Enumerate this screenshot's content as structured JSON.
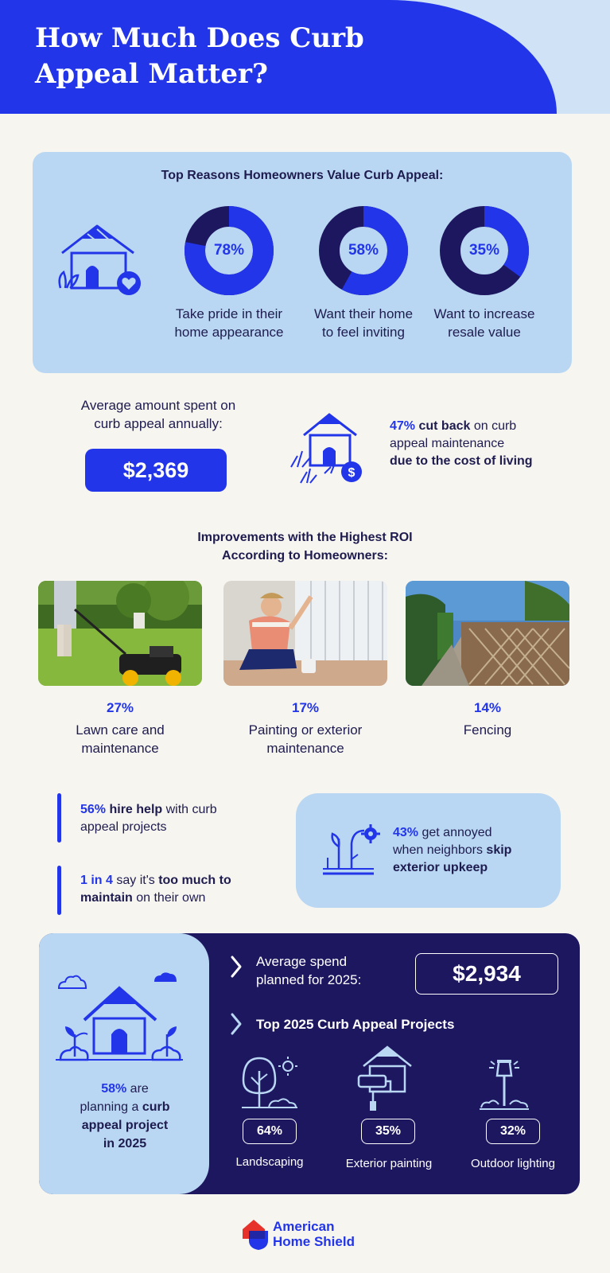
{
  "header": {
    "title_line1": "How Much Does Curb",
    "title_line2": "Appeal Matter?",
    "bg_color": "#2235e8"
  },
  "reasons": {
    "heading": "Top Reasons Homeowners Value Curb Appeal:",
    "icon": "house-heart-icon",
    "items": [
      {
        "percent": "78%",
        "value": 0.78,
        "label_line1": "Take pride in their",
        "label_line2": "home appearance"
      },
      {
        "percent": "58%",
        "value": 0.58,
        "label_line1": "Want their home",
        "label_line2": "to feel inviting"
      },
      {
        "percent": "35%",
        "value": 0.35,
        "label_line1": "Want to increase",
        "label_line2": "resale value"
      }
    ]
  },
  "average_spend": {
    "label_line1": "Average amount spent on",
    "label_line2": "curb appeal annually:",
    "amount": "$2,369"
  },
  "cut_back": {
    "icon": "house-dollar-icon",
    "percent": "47%",
    "text1": " cut back",
    "text2": " on curb",
    "line2": "appeal maintenance",
    "line3": "due to the cost of living"
  },
  "roi": {
    "heading_line1": "Improvements with the Highest ROI",
    "heading_line2": "According to Homeowners:",
    "items": [
      {
        "percent": "27%",
        "label_line1": "Lawn care and",
        "label_line2": "maintenance",
        "photo": "lawn-mowing-photo"
      },
      {
        "percent": "17%",
        "label_line1": "Painting or exterior",
        "label_line2": "maintenance",
        "photo": "painting-fence-photo"
      },
      {
        "percent": "14%",
        "label_line1": "Fencing",
        "label_line2": "",
        "photo": "fence-path-photo"
      }
    ]
  },
  "stats": {
    "hire": {
      "lead": "56%",
      "bold": " hire help",
      "rest": " with curb",
      "line2": "appeal projects"
    },
    "maintain": {
      "lead": "1 in 4",
      "rest": " say it's ",
      "bold": "too much to",
      "line2_bold": "maintain",
      "line2_rest": " on their own"
    },
    "annoyed": {
      "icon": "plant-gear-icon",
      "lead": "43%",
      "rest": " get annoyed",
      "line2": "when neighbors ",
      "line2_bold": "skip",
      "line3_bold": "exterior upkeep"
    }
  },
  "plan2025": {
    "icon": "house-clouds-icon",
    "lead": "58%",
    "rest": " are",
    "line2": "planning a ",
    "line2_bold": "curb",
    "line3_bold": "appeal project",
    "line4_bold": "in 2025",
    "spend_label_line1": "Average spend",
    "spend_label_line2": "planned for 2025:",
    "spend_amount": "$2,934",
    "projects_heading": "Top 2025 Curb Appeal Projects",
    "projects": [
      {
        "icon": "tree-sun-icon",
        "percent": "64%",
        "label": "Landscaping"
      },
      {
        "icon": "house-roller-icon",
        "percent": "35%",
        "label": "Exterior painting"
      },
      {
        "icon": "lamp-post-icon",
        "percent": "32%",
        "label": "Outdoor lighting"
      }
    ]
  },
  "logo": {
    "line1": "American",
    "line2": "Home Shield"
  }
}
